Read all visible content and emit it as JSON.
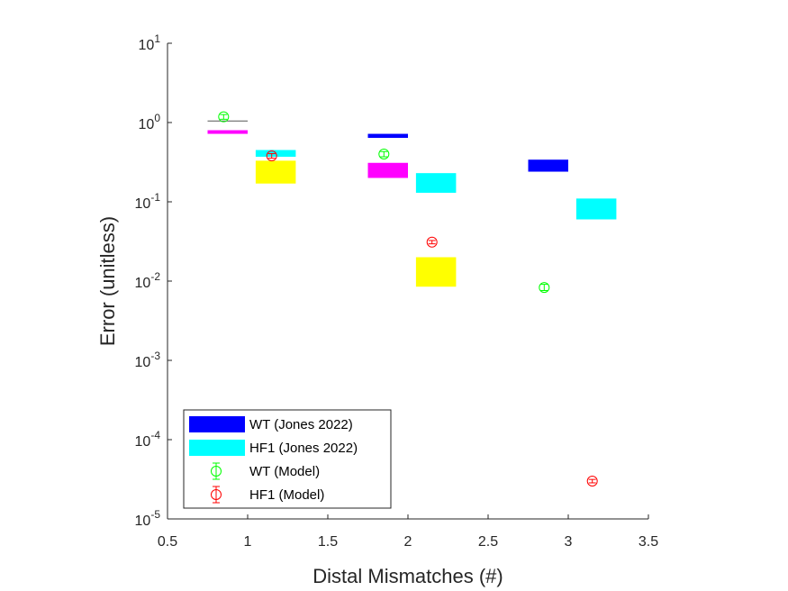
{
  "chart_data": {
    "type": "scatter",
    "xlabel": "Distal Mismatches (#)",
    "ylabel": "Error (unitless)",
    "x_scale": "linear",
    "y_scale": "log",
    "xlim": [
      0.5,
      3.5
    ],
    "ylim": [
      1e-05,
      10
    ],
    "x_ticks": [
      {
        "value": 0.5,
        "label": "0.5"
      },
      {
        "value": 1,
        "label": "1"
      },
      {
        "value": 1.5,
        "label": "1.5"
      },
      {
        "value": 2,
        "label": "2"
      },
      {
        "value": 2.5,
        "label": "2.5"
      },
      {
        "value": 3,
        "label": "3"
      },
      {
        "value": 3.5,
        "label": "3.5"
      }
    ],
    "y_ticks": [
      {
        "value": 10,
        "base": "10",
        "exp": "1"
      },
      {
        "value": 1,
        "base": "10",
        "exp": "0"
      },
      {
        "value": 0.1,
        "base": "10",
        "exp": "-1"
      },
      {
        "value": 0.01,
        "base": "10",
        "exp": "-2"
      },
      {
        "value": 0.001,
        "base": "10",
        "exp": "-3"
      },
      {
        "value": 0.0001,
        "base": "10",
        "exp": "-4"
      },
      {
        "value": 1e-05,
        "base": "10",
        "exp": "-5"
      }
    ],
    "grid": false,
    "legend_position": "bottom-left",
    "legend": [
      {
        "label": "WT (Jones 2022)",
        "kind": "patch",
        "color": "#0000ff"
      },
      {
        "label": "HF1 (Jones 2022)",
        "kind": "patch",
        "color": "#00ffff"
      },
      {
        "label": "WT (Model)",
        "kind": "marker",
        "color": "#00ff00"
      },
      {
        "label": "HF1 (Model)",
        "kind": "marker",
        "color": "#ff0000"
      }
    ],
    "boxes": [
      {
        "x0": 0.75,
        "x1": 1.0,
        "y_low": 1.03,
        "y_high": 1.06,
        "color": "#666666"
      },
      {
        "x0": 0.75,
        "x1": 1.0,
        "y_low": 0.72,
        "y_high": 0.8,
        "color": "#ff00ff"
      },
      {
        "x0": 1.05,
        "x1": 1.3,
        "y_low": 0.37,
        "y_high": 0.45,
        "color": "#00ffff"
      },
      {
        "x0": 1.05,
        "x1": 1.3,
        "y_low": 0.17,
        "y_high": 0.33,
        "color": "#ffff00"
      },
      {
        "x0": 1.75,
        "x1": 2.0,
        "y_low": 0.64,
        "y_high": 0.72,
        "color": "#0000ff"
      },
      {
        "x0": 1.75,
        "x1": 2.0,
        "y_low": 0.2,
        "y_high": 0.31,
        "color": "#ff00ff"
      },
      {
        "x0": 2.05,
        "x1": 2.3,
        "y_low": 0.13,
        "y_high": 0.23,
        "color": "#00ffff"
      },
      {
        "x0": 2.05,
        "x1": 2.3,
        "y_low": 0.0085,
        "y_high": 0.02,
        "color": "#ffff00"
      },
      {
        "x0": 2.75,
        "x1": 3.0,
        "y_low": 0.24,
        "y_high": 0.34,
        "color": "#0000ff"
      },
      {
        "x0": 3.05,
        "x1": 3.3,
        "y_low": 0.06,
        "y_high": 0.11,
        "color": "#00ffff"
      }
    ],
    "series": [
      {
        "name": "WT (Model)",
        "color": "#00ff00",
        "points": [
          {
            "x": 0.85,
            "y": 1.18,
            "err_low": 1.1,
            "err_high": 1.26
          },
          {
            "x": 1.85,
            "y": 0.4,
            "err_low": 0.37,
            "err_high": 0.43
          },
          {
            "x": 2.85,
            "y": 0.0083,
            "err_low": 0.0076,
            "err_high": 0.0091
          }
        ]
      },
      {
        "name": "HF1 (Model)",
        "color": "#ff0000",
        "points": [
          {
            "x": 1.15,
            "y": 0.38,
            "err_low": 0.355,
            "err_high": 0.405
          },
          {
            "x": 2.15,
            "y": 0.031,
            "err_low": 0.0295,
            "err_high": 0.0325
          },
          {
            "x": 3.15,
            "y": 3e-05,
            "err_low": 2.85e-05,
            "err_high": 3.15e-05
          }
        ]
      }
    ]
  }
}
